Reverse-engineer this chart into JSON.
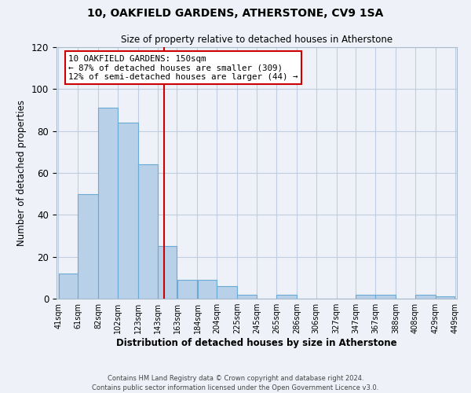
{
  "title": "10, OAKFIELD GARDENS, ATHERSTONE, CV9 1SA",
  "subtitle": "Size of property relative to detached houses in Atherstone",
  "xlabel": "Distribution of detached houses by size in Atherstone",
  "ylabel": "Number of detached properties",
  "bar_left_edges": [
    41,
    61,
    82,
    102,
    123,
    143,
    163,
    184,
    204,
    225,
    245,
    265,
    286,
    306,
    327,
    347,
    367,
    388,
    408,
    429
  ],
  "bar_widths": [
    20,
    21,
    20,
    21,
    20,
    20,
    21,
    20,
    21,
    20,
    20,
    21,
    20,
    21,
    20,
    20,
    21,
    20,
    21,
    20
  ],
  "bar_heights": [
    12,
    50,
    91,
    84,
    64,
    25,
    9,
    9,
    6,
    2,
    0,
    2,
    0,
    0,
    0,
    2,
    2,
    0,
    2,
    1
  ],
  "bar_color": "#b8d0e8",
  "bar_edge_color": "#6aaad4",
  "x_tick_labels": [
    "41sqm",
    "61sqm",
    "82sqm",
    "102sqm",
    "123sqm",
    "143sqm",
    "163sqm",
    "184sqm",
    "204sqm",
    "225sqm",
    "245sqm",
    "265sqm",
    "286sqm",
    "306sqm",
    "327sqm",
    "347sqm",
    "367sqm",
    "388sqm",
    "408sqm",
    "429sqm",
    "449sqm"
  ],
  "ylim": [
    0,
    120
  ],
  "yticks": [
    0,
    20,
    40,
    60,
    80,
    100,
    120
  ],
  "vline_x": 150,
  "vline_color": "#cc0000",
  "annotation_line1": "10 OAKFIELD GARDENS: 150sqm",
  "annotation_line2": "← 87% of detached houses are smaller (309)",
  "annotation_line3": "12% of semi-detached houses are larger (44) →",
  "footer_line1": "Contains HM Land Registry data © Crown copyright and database right 2024.",
  "footer_line2": "Contains public sector information licensed under the Open Government Licence v3.0.",
  "background_color": "#eef2f8",
  "plot_background_color": "#eef2f8",
  "grid_color": "#c0cde0"
}
